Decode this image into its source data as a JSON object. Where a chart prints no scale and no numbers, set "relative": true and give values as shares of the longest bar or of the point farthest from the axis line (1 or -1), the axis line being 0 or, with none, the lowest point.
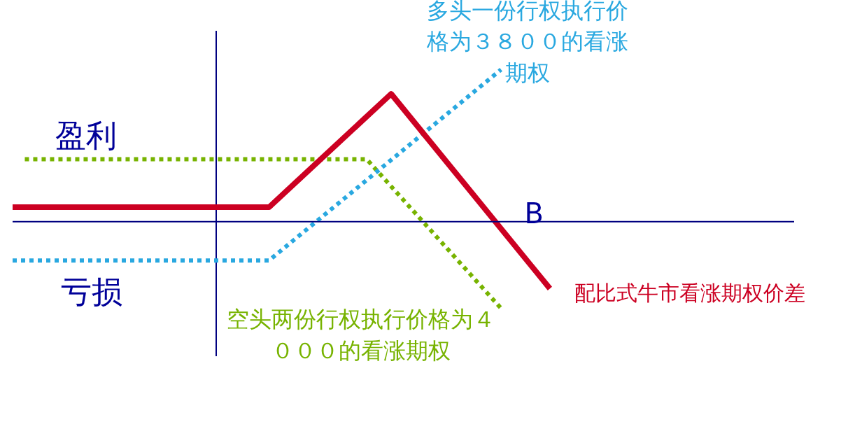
{
  "chart_data": {
    "type": "line",
    "relative": true,
    "legend": false,
    "grid": false,
    "marker": "none",
    "categories": [
      null,
      null,
      null,
      null,
      null,
      null,
      null,
      null,
      null,
      null,
      null,
      null,
      null,
      null,
      null,
      null,
      null,
      null,
      null,
      null,
      null,
      null,
      null,
      null,
      null,
      null,
      null,
      null,
      null,
      null,
      null,
      null,
      null,
      null,
      null,
      null,
      null,
      null,
      null,
      null,
      null,
      null,
      null,
      null,
      null,
      null,
      null,
      null,
      null,
      null,
      null,
      null,
      null,
      null,
      null,
      null,
      null,
      null,
      null,
      null,
      null,
      null,
      null,
      null,
      null
    ],
    "series": [
      {
        "name": "配比式牛市看涨期权价差",
        "color": "#cc0022",
        "line_style": "solid",
        "values": [
          0.095,
          null,
          null,
          null,
          null,
          null,
          null,
          null,
          null,
          null,
          null,
          null,
          null,
          null,
          null,
          null,
          null,
          null,
          null,
          null,
          null,
          0.095,
          null,
          null,
          null,
          null,
          null,
          null,
          null,
          null,
          null,
          0.84,
          null,
          null,
          null,
          null,
          null,
          null,
          null,
          null,
          null,
          null,
          null,
          null,
          -0.44,
          null,
          null,
          null,
          null,
          null,
          null,
          null,
          null,
          null,
          null,
          null,
          null,
          null,
          null,
          null,
          null,
          null,
          null,
          null,
          null
        ]
      },
      {
        "name": "多头一份行权执行价格为３８００的看涨期权",
        "color": "#29a8e0",
        "line_style": "dotted",
        "values": [
          -0.255,
          null,
          null,
          null,
          null,
          null,
          null,
          null,
          null,
          null,
          null,
          null,
          null,
          null,
          null,
          null,
          null,
          null,
          null,
          null,
          null,
          -0.255,
          null,
          null,
          null,
          null,
          null,
          null,
          null,
          null,
          null,
          null,
          null,
          null,
          null,
          null,
          null,
          null,
          null,
          null,
          1,
          null,
          null,
          null,
          null,
          null,
          null,
          null,
          null,
          null,
          null,
          null,
          null,
          null,
          null,
          null,
          null,
          null,
          null,
          null,
          null,
          null,
          null,
          null,
          null
        ]
      },
      {
        "name": "空头两份行权执行价格为４０００的看涨期权",
        "color": "#77b300",
        "line_style": "dotted",
        "values": [
          null,
          0.41,
          null,
          null,
          null,
          null,
          null,
          null,
          null,
          null,
          null,
          null,
          null,
          null,
          null,
          null,
          null,
          null,
          null,
          null,
          null,
          null,
          null,
          null,
          null,
          null,
          null,
          null,
          null,
          0.41,
          null,
          null,
          null,
          null,
          null,
          null,
          null,
          null,
          null,
          null,
          -0.57,
          null,
          null,
          null,
          null,
          null,
          null,
          null,
          null,
          null,
          null,
          null,
          null,
          null,
          null,
          null,
          null,
          null,
          null,
          null,
          null,
          null,
          null,
          null,
          null
        ]
      }
    ],
    "ref_lines": [
      {
        "axis": "y",
        "value": 0,
        "color": "#000080"
      }
    ],
    "annotations": [
      "盈利",
      "亏损",
      "B"
    ]
  }
}
